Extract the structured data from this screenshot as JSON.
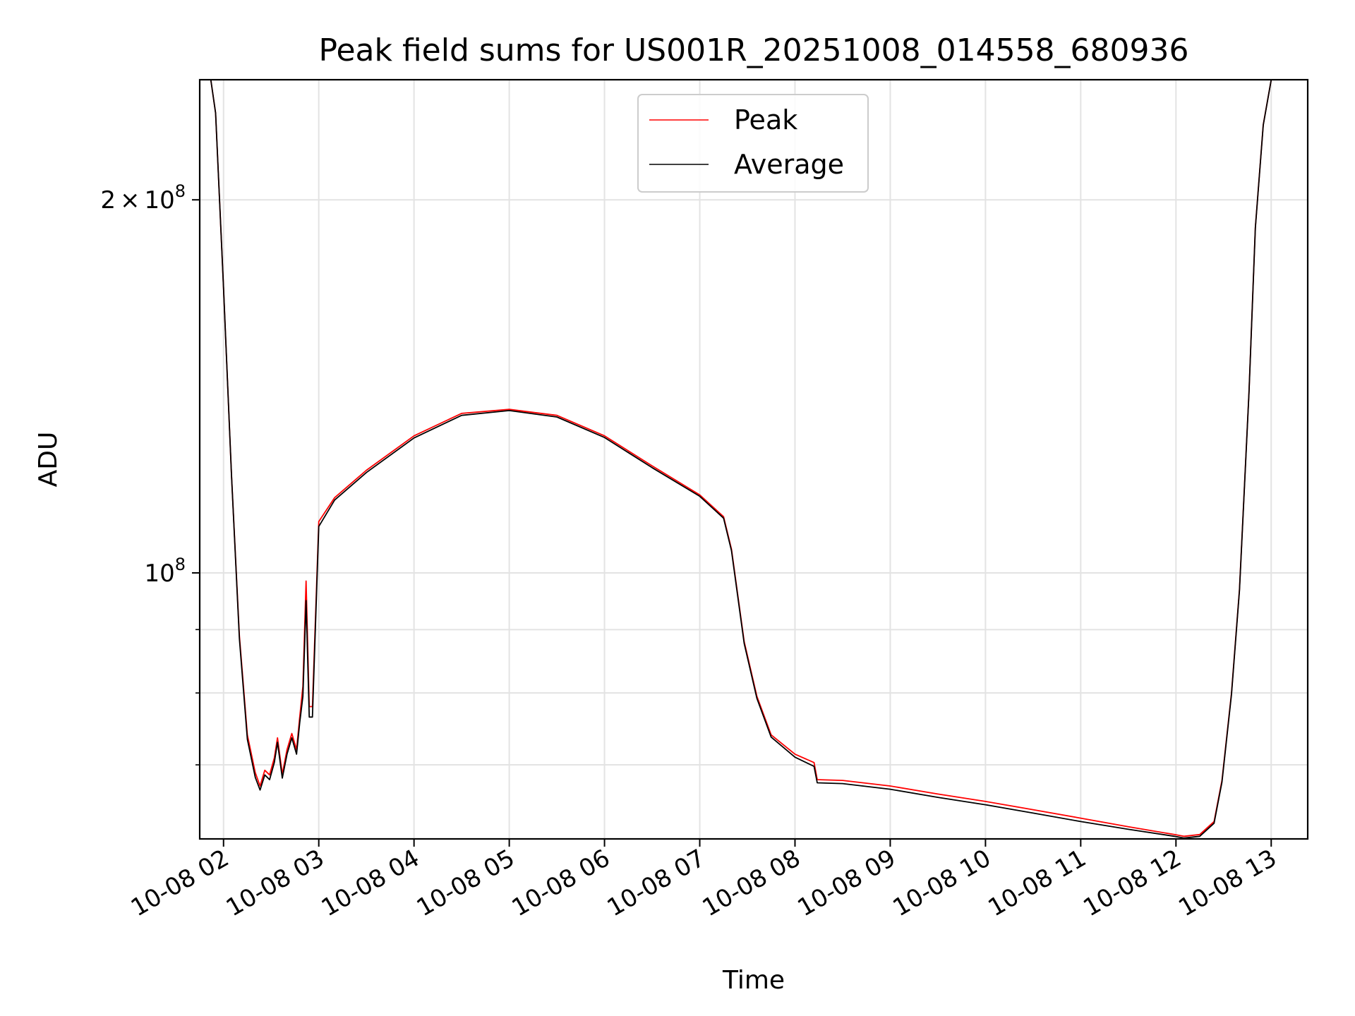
{
  "chart_data": {
    "type": "line",
    "title": "Peak field sums for US001R_20251008_014558_680936",
    "xlabel": "Time",
    "ylabel": "ADU",
    "yscale": "log",
    "grid": true,
    "legend_position": "upper center",
    "x_range": [
      "2025-10-08 01:45",
      "2025-10-08 13:23"
    ],
    "y_range": [
      61000000,
      250000000
    ],
    "x_ticks": [
      "10-08 02",
      "10-08 03",
      "10-08 04",
      "10-08 05",
      "10-08 06",
      "10-08 07",
      "10-08 08",
      "10-08 09",
      "10-08 10",
      "10-08 11",
      "10-08 12",
      "10-08 13"
    ],
    "y_ticks_labeled": [
      {
        "value": 200000000,
        "label": "2×10^8",
        "mantissa": "2",
        "times": "×",
        "base": "10",
        "exp": "8"
      },
      {
        "value": 100000000,
        "label": "10^8",
        "mantissa": "",
        "times": "",
        "base": "10",
        "exp": "8"
      }
    ],
    "y_ticks_minor": [
      60000000,
      70000000,
      80000000,
      90000000,
      300000000
    ],
    "series": [
      {
        "name": "Peak",
        "color": "#ff0000",
        "x": [
          "2025-10-08 01:52",
          "2025-10-08 01:55",
          "2025-10-08 02:00",
          "2025-10-08 02:05",
          "2025-10-08 02:10",
          "2025-10-08 02:15",
          "2025-10-08 02:20",
          "2025-10-08 02:23",
          "2025-10-08 02:26",
          "2025-10-08 02:29",
          "2025-10-08 02:32",
          "2025-10-08 02:34",
          "2025-10-08 02:37",
          "2025-10-08 02:40",
          "2025-10-08 02:43",
          "2025-10-08 02:46",
          "2025-10-08 02:48",
          "2025-10-08 02:50",
          "2025-10-08 02:52",
          "2025-10-08 02:54",
          "2025-10-08 02:56",
          "2025-10-08 03:00",
          "2025-10-08 03:10",
          "2025-10-08 03:30",
          "2025-10-08 04:00",
          "2025-10-08 04:30",
          "2025-10-08 05:00",
          "2025-10-08 05:30",
          "2025-10-08 06:00",
          "2025-10-08 06:30",
          "2025-10-08 07:00",
          "2025-10-08 07:15",
          "2025-10-08 07:20",
          "2025-10-08 07:28",
          "2025-10-08 07:36",
          "2025-10-08 07:45",
          "2025-10-08 08:00",
          "2025-10-08 08:12",
          "2025-10-08 08:14",
          "2025-10-08 08:30",
          "2025-10-08 09:00",
          "2025-10-08 09:30",
          "2025-10-08 10:00",
          "2025-10-08 10:30",
          "2025-10-08 11:00",
          "2025-10-08 11:30",
          "2025-10-08 11:59",
          "2025-10-08 12:05",
          "2025-10-08 12:15",
          "2025-10-08 12:24",
          "2025-10-08 12:29",
          "2025-10-08 12:35",
          "2025-10-08 12:40",
          "2025-10-08 12:46",
          "2025-10-08 12:50",
          "2025-10-08 12:55",
          "2025-10-08 13:00"
        ],
        "y": [
          250000000,
          235000000,
          170000000,
          120000000,
          89000000,
          74000000,
          69000000,
          67300000,
          69300000,
          68700000,
          70900000,
          73600000,
          68800000,
          72000000,
          74200000,
          72000000,
          76500000,
          81000000,
          98500000,
          78000000,
          78000000,
          110000000,
          115000000,
          121000000,
          129000000,
          134500000,
          135500000,
          134000000,
          129000000,
          122000000,
          115600000,
          111000000,
          104500000,
          88000000,
          79500000,
          74000000,
          71400000,
          70300000,
          68100000,
          68000000,
          67300000,
          66300000,
          65400000,
          64400000,
          63400000,
          62400000,
          61500000,
          61300000,
          61500000,
          63000000,
          68000000,
          80000000,
          97000000,
          140000000,
          190000000,
          230000000,
          250000000
        ]
      },
      {
        "name": "Average",
        "color": "#000000",
        "x": [
          "2025-10-08 01:52",
          "2025-10-08 01:55",
          "2025-10-08 02:00",
          "2025-10-08 02:05",
          "2025-10-08 02:10",
          "2025-10-08 02:15",
          "2025-10-08 02:20",
          "2025-10-08 02:23",
          "2025-10-08 02:26",
          "2025-10-08 02:29",
          "2025-10-08 02:32",
          "2025-10-08 02:34",
          "2025-10-08 02:37",
          "2025-10-08 02:40",
          "2025-10-08 02:43",
          "2025-10-08 02:46",
          "2025-10-08 02:48",
          "2025-10-08 02:50",
          "2025-10-08 02:52",
          "2025-10-08 02:54",
          "2025-10-08 02:56",
          "2025-10-08 03:00",
          "2025-10-08 03:10",
          "2025-10-08 03:30",
          "2025-10-08 04:00",
          "2025-10-08 04:30",
          "2025-10-08 05:00",
          "2025-10-08 05:30",
          "2025-10-08 06:00",
          "2025-10-08 06:30",
          "2025-10-08 07:00",
          "2025-10-08 07:15",
          "2025-10-08 07:20",
          "2025-10-08 07:28",
          "2025-10-08 07:36",
          "2025-10-08 07:45",
          "2025-10-08 08:00",
          "2025-10-08 08:12",
          "2025-10-08 08:14",
          "2025-10-08 08:30",
          "2025-10-08 09:00",
          "2025-10-08 09:30",
          "2025-10-08 10:00",
          "2025-10-08 10:30",
          "2025-10-08 11:00",
          "2025-10-08 11:30",
          "2025-10-08 11:59",
          "2025-10-08 12:05",
          "2025-10-08 12:15",
          "2025-10-08 12:24",
          "2025-10-08 12:29",
          "2025-10-08 12:35",
          "2025-10-08 12:40",
          "2025-10-08 12:46",
          "2025-10-08 12:50",
          "2025-10-08 12:55",
          "2025-10-08 13:00"
        ],
        "y": [
          250000000,
          235000000,
          170000000,
          120000000,
          88500000,
          73400000,
          68400000,
          66800000,
          68700000,
          68100000,
          70300000,
          73000000,
          68300000,
          71400000,
          73600000,
          71400000,
          75700000,
          79500000,
          95000000,
          76500000,
          76500000,
          109000000,
          114500000,
          120500000,
          128500000,
          134000000,
          135200000,
          133600000,
          128600000,
          121600000,
          115300000,
          110700000,
          104200000,
          87700000,
          79200000,
          73700000,
          71000000,
          69800000,
          67700000,
          67600000,
          66900000,
          65900000,
          65000000,
          64000000,
          63000000,
          62100000,
          61300000,
          61100000,
          61300000,
          62800000,
          67800000,
          79800000,
          96800000,
          139800000,
          189800000,
          229800000,
          250000000
        ]
      }
    ]
  }
}
